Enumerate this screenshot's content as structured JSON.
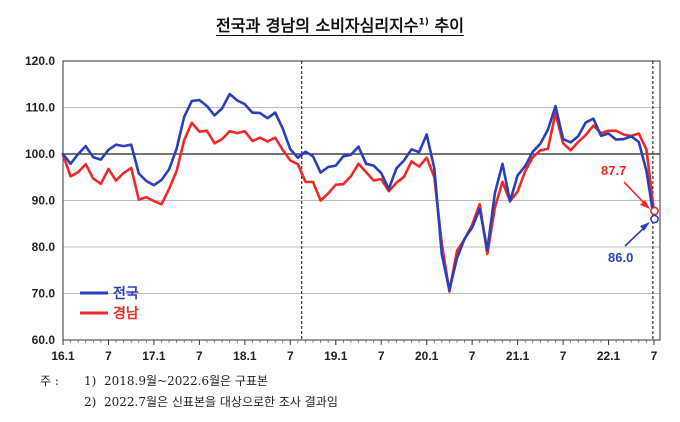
{
  "title": "전국과 경남의 소비자심리지수",
  "title_sup": "1)",
  "title_suffix": " 추이",
  "notes": {
    "lead": "주 :",
    "n1": "1)",
    "t1": "2018.9월~2022.6월은 구표본",
    "n2": "2)",
    "t2": "2022.7월은 신표본을 대상으로한 조사 결과임"
  },
  "callouts": {
    "national": "86.0",
    "gyeongnam": "87.7"
  },
  "colors": {
    "national": "#2a3fb8",
    "gyeongnam": "#f02828",
    "grid": "#bbbbbb",
    "baseline": "#222222"
  },
  "chart_data": {
    "type": "line",
    "x": [
      "16.1",
      "16.2",
      "16.3",
      "16.4",
      "16.5",
      "16.6",
      "16.7",
      "16.8",
      "16.9",
      "16.10",
      "16.11",
      "16.12",
      "17.1",
      "17.2",
      "17.3",
      "17.4",
      "17.5",
      "17.6",
      "17.7",
      "17.8",
      "17.9",
      "17.10",
      "17.11",
      "17.12",
      "18.1",
      "18.2",
      "18.3",
      "18.4",
      "18.5",
      "18.6",
      "18.7",
      "18.8",
      "18.9",
      "18.10",
      "18.11",
      "18.12",
      "19.1",
      "19.2",
      "19.3",
      "19.4",
      "19.5",
      "19.6",
      "19.7",
      "19.8",
      "19.9",
      "19.10",
      "19.11",
      "19.12",
      "20.1",
      "20.2",
      "20.3",
      "20.4",
      "20.5",
      "20.6",
      "20.7",
      "20.8",
      "20.9",
      "20.10",
      "20.11",
      "20.12",
      "21.1",
      "21.2",
      "21.3",
      "21.4",
      "21.5",
      "21.6",
      "21.7",
      "21.8",
      "21.9",
      "21.10",
      "21.11",
      "21.12",
      "22.1",
      "22.2",
      "22.3",
      "22.4",
      "22.5",
      "22.6",
      "22.7"
    ],
    "x_ticks": [
      "16.1",
      "7",
      "17.1",
      "7",
      "18.1",
      "7",
      "19.1",
      "7",
      "20.1",
      "7",
      "21.1",
      "7",
      "22.1",
      "7"
    ],
    "ylim": [
      60.0,
      120.0
    ],
    "y_ticks": [
      "60.0",
      "70.0",
      "80.0",
      "90.0",
      "100.0",
      "110.0",
      "120.0"
    ],
    "grid": "horizontal",
    "reference_line": 100.0,
    "dashed_dividers": [
      "18.9",
      "22.7"
    ],
    "legend_position": "bottom-left",
    "series": [
      {
        "name": "전국",
        "values": [
          100.0,
          97.9,
          100.0,
          101.7,
          99.3,
          98.8,
          100.9,
          102.0,
          101.7,
          102.0,
          95.8,
          94.2,
          93.3,
          94.4,
          96.7,
          101.2,
          108.0,
          111.4,
          111.6,
          110.3,
          108.3,
          109.8,
          112.9,
          111.5,
          110.7,
          108.9,
          108.8,
          107.7,
          108.9,
          105.5,
          101.0,
          99.2,
          100.5,
          99.5,
          96.0,
          97.2,
          97.5,
          99.5,
          99.8,
          101.6,
          97.9,
          97.5,
          95.9,
          92.5,
          96.9,
          98.6,
          101.0,
          100.4,
          104.2,
          96.9,
          78.4,
          70.8,
          77.6,
          81.8,
          84.2,
          88.2,
          79.4,
          91.6,
          97.9,
          89.8,
          95.4,
          97.4,
          100.5,
          102.2,
          105.2,
          110.3,
          103.2,
          102.5,
          103.8,
          106.8,
          107.6,
          103.9,
          104.4,
          103.1,
          103.2,
          103.8,
          102.6,
          96.4,
          86.0
        ]
      },
      {
        "name": "경남",
        "values": [
          99.8,
          95.2,
          96.1,
          97.8,
          94.7,
          93.6,
          96.8,
          94.3,
          95.9,
          97.0,
          90.2,
          90.7,
          89.9,
          89.2,
          92.5,
          96.4,
          103.0,
          106.7,
          104.8,
          105.0,
          102.3,
          103.2,
          104.9,
          104.5,
          104.9,
          102.8,
          103.5,
          102.7,
          103.5,
          100.9,
          98.6,
          97.8,
          94.0,
          94.0,
          90.0,
          91.5,
          93.4,
          93.5,
          95.2,
          97.9,
          96.1,
          94.3,
          94.6,
          92.0,
          93.8,
          95.1,
          98.4,
          97.3,
          99.2,
          95.0,
          80.7,
          70.4,
          79.2,
          81.7,
          84.8,
          89.2,
          78.5,
          88.5,
          94.0,
          89.9,
          91.9,
          96.3,
          99.3,
          100.8,
          101.1,
          108.8,
          102.3,
          100.8,
          102.6,
          104.1,
          106.1,
          104.5,
          105.0,
          105.0,
          104.2,
          103.9,
          104.4,
          101.0,
          87.7
        ]
      }
    ]
  }
}
